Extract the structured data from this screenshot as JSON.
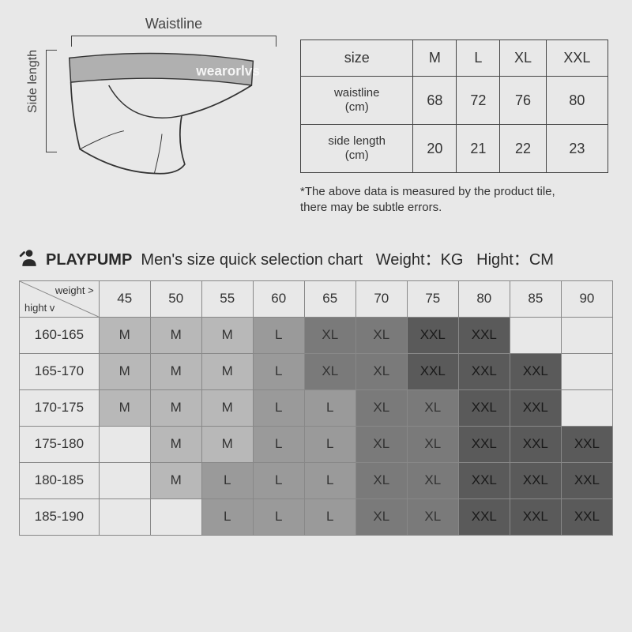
{
  "diagram": {
    "waistline_label": "Waistline",
    "side_label": "Side length",
    "waistband_text": "wearorlvs"
  },
  "size_table": {
    "headers": [
      "size",
      "M",
      "L",
      "XL",
      "XXL"
    ],
    "rows": [
      {
        "label_line1": "waistline",
        "label_line2": "(cm)",
        "cells": [
          "68",
          "72",
          "76",
          "80"
        ]
      },
      {
        "label_line1": "side length",
        "label_line2": "(cm)",
        "cells": [
          "20",
          "21",
          "22",
          "23"
        ]
      }
    ],
    "disclaimer_line1": "*The above data is measured by the product tile,",
    "disclaimer_line2": "there may be subtle errors."
  },
  "chart_title": {
    "brand": "PLAYPUMP",
    "text": "Men's size quick selection chart",
    "weight_label": "Weight：KG",
    "height_label": "Hight：CM"
  },
  "selection_table": {
    "diag_weight": "weight >",
    "diag_height": "hight v",
    "weights": [
      "45",
      "50",
      "55",
      "60",
      "65",
      "70",
      "75",
      "80",
      "85",
      "90"
    ],
    "rows": [
      {
        "h": "160-165",
        "cells": [
          "M",
          "M",
          "M",
          "L",
          "XL",
          "XL",
          "XXL",
          "XXL",
          "",
          ""
        ]
      },
      {
        "h": "165-170",
        "cells": [
          "M",
          "M",
          "M",
          "L",
          "XL",
          "XL",
          "XXL",
          "XXL",
          "XXL",
          ""
        ]
      },
      {
        "h": "170-175",
        "cells": [
          "M",
          "M",
          "M",
          "L",
          "L",
          "XL",
          "XL",
          "XXL",
          "XXL",
          ""
        ]
      },
      {
        "h": "175-180",
        "cells": [
          "",
          "M",
          "M",
          "L",
          "L",
          "XL",
          "XL",
          "XXL",
          "XXL",
          "XXL"
        ]
      },
      {
        "h": "180-185",
        "cells": [
          "",
          "M",
          "L",
          "L",
          "L",
          "XL",
          "XL",
          "XXL",
          "XXL",
          "XXL"
        ]
      },
      {
        "h": "185-190",
        "cells": [
          "",
          "",
          "L",
          "L",
          "L",
          "XL",
          "XL",
          "XXL",
          "XXL",
          "XXL"
        ]
      }
    ],
    "shades": {
      "": "#e8e8e8",
      "M": "#b8b8b8",
      "L": "#9a9a9a",
      "XL": "#7a7a7a",
      "XXL": "#5a5a5a"
    }
  },
  "colors": {
    "page_bg": "#e8e8e8",
    "line": "#444",
    "text": "#333"
  }
}
